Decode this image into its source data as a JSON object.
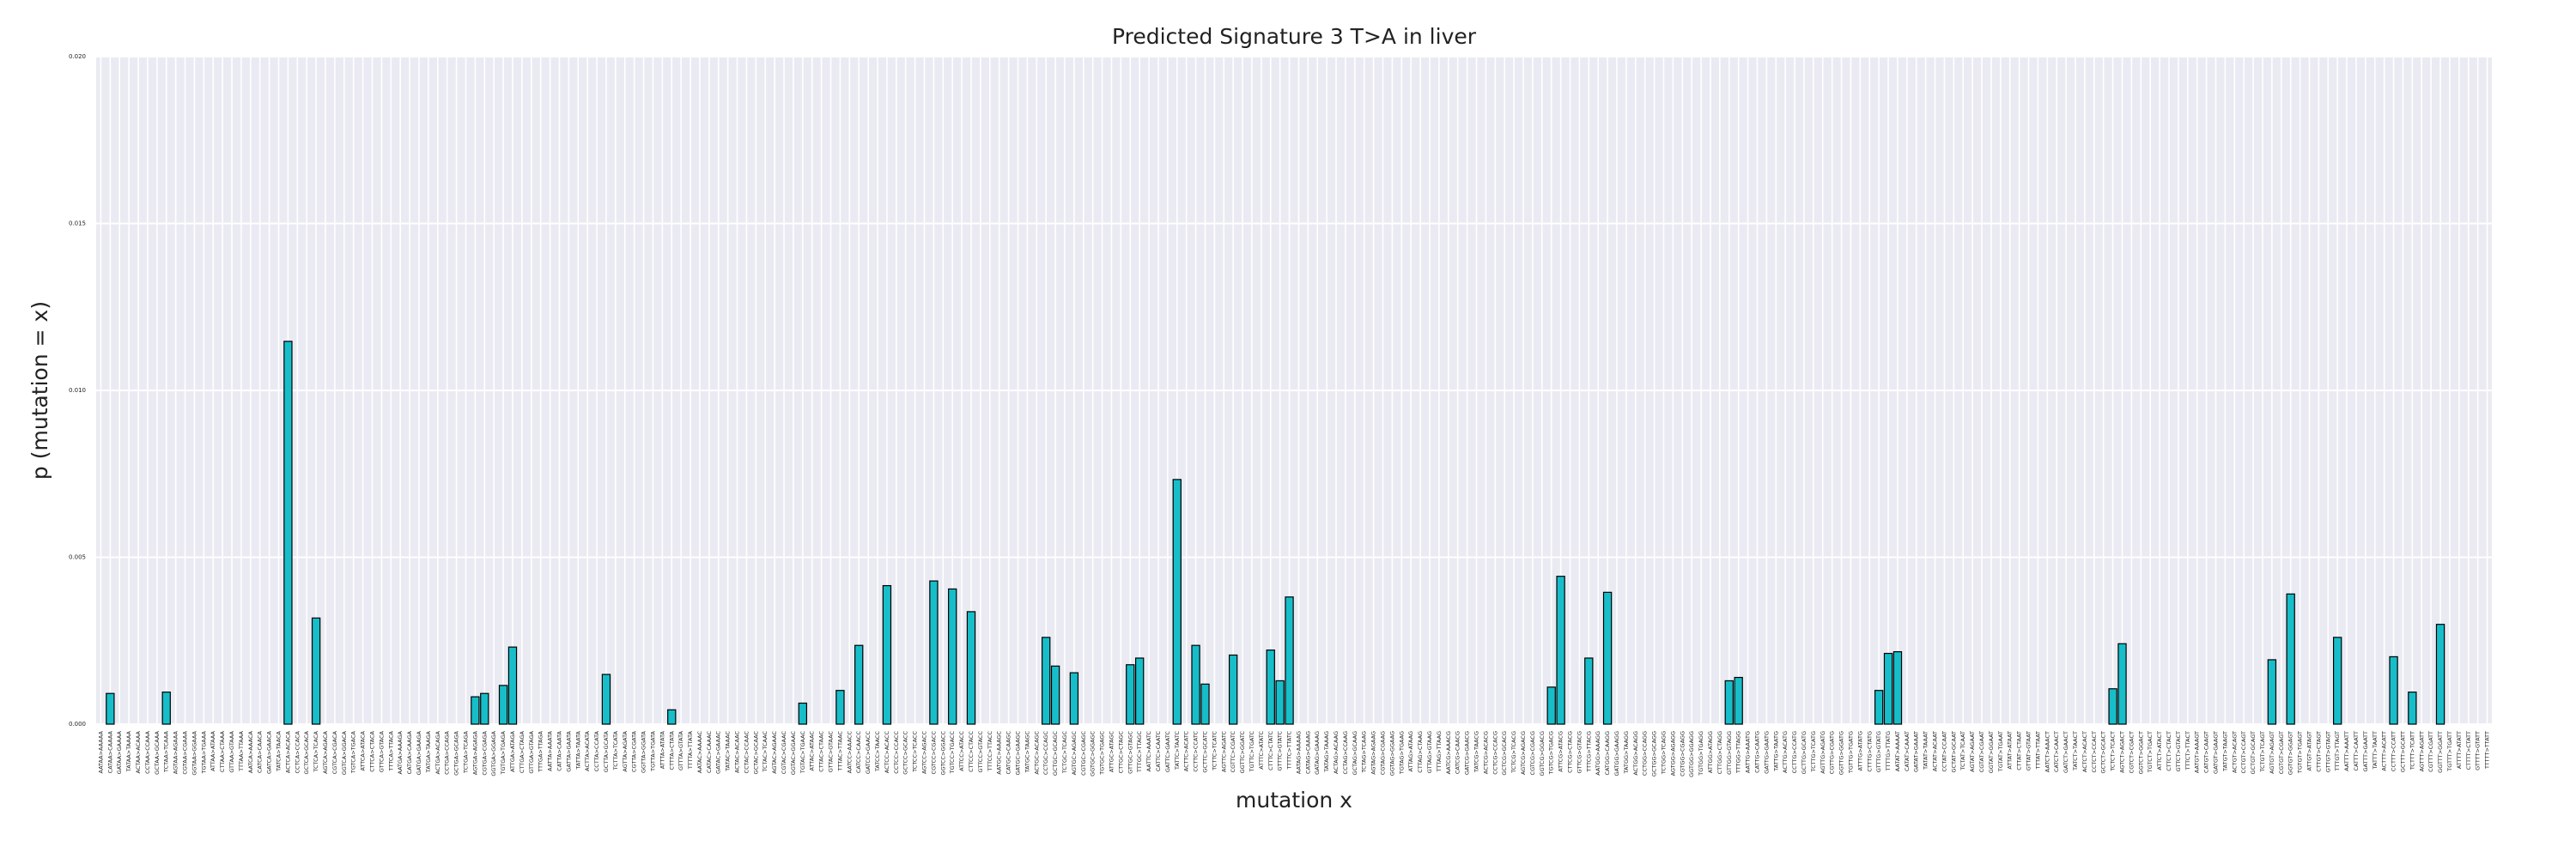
{
  "chart_data": {
    "type": "bar",
    "title": "Predicted Signature 3 T>A in liver",
    "xlabel": "mutation x",
    "ylabel": "p (mutation = x)",
    "color": "#17bec9",
    "edgecolor": "#000000",
    "grid": true,
    "ylim": [
      0,
      0.02
    ],
    "yticks": [
      {
        "value": 0,
        "label": "0.000"
      },
      {
        "value": 0.005,
        "label": "0.005"
      },
      {
        "value": 0.01,
        "label": "0.010"
      },
      {
        "value": 0.015,
        "label": "0.015"
      },
      {
        "value": 0.02,
        "label": "0.020"
      }
    ],
    "categories": [
      "AATAA>AAAAA",
      "CATAA>CAAAA",
      "GATAA>GAAAA",
      "TATAA>TAAAA",
      "ACTAA>ACAAA",
      "CCTAA>CCAAA",
      "GCTAA>GCAAA",
      "TCTAA>TCAAA",
      "AGTAA>AGAAA",
      "CGTAA>CGAAA",
      "GGTAA>GGAAA",
      "TGTAA>TGAAA",
      "ATTAA>ATAAA",
      "CTTAA>CTAAA",
      "GTTAA>GTAAA",
      "TTTAA>TTAAA",
      "AATCA>AAACA",
      "CATCA>CAACA",
      "GATCA>GAACA",
      "TATCA>TAACA",
      "ACTCA>ACACA",
      "CCTCA>CCACA",
      "GCTCA>GCACA",
      "TCTCA>TCACA",
      "AGTCA>AGACA",
      "CGTCA>CGACA",
      "GGTCA>GGACA",
      "TGTCA>TGACA",
      "ATTCA>ATACA",
      "CTTCA>CTACA",
      "GTTCA>GTACA",
      "TTTCA>TTACA",
      "AATGA>AAAGA",
      "CATGA>CAAGA",
      "GATGA>GAAGA",
      "TATGA>TAAGA",
      "ACTGA>ACAGA",
      "CCTGA>CCAGA",
      "GCTGA>GCAGA",
      "TCTGA>TCAGA",
      "AGTGA>AGAGA",
      "CGTGA>CGAGA",
      "GGTGA>GGAGA",
      "TGTGA>TGAGA",
      "ATTGA>ATAGA",
      "CTTGA>CTAGA",
      "GTTGA>GTAGA",
      "TTTGA>TTAGA",
      "AATTA>AAATA",
      "CATTA>CAATA",
      "GATTA>GAATA",
      "TATTA>TAATA",
      "ACTTA>ACATA",
      "CCTTA>CCATA",
      "GCTTA>GCATA",
      "TCTTA>TCATA",
      "AGTTA>AGATA",
      "CGTTA>CGATA",
      "GGTTA>GGATA",
      "TGTTA>TGATA",
      "ATTTA>ATATA",
      "CTTTA>CTATA",
      "GTTTA>GTATA",
      "TTTTA>TTATA",
      "AATAC>AAAAC",
      "CATAC>CAAAC",
      "GATAC>GAAAC",
      "TATAC>TAAAC",
      "ACTAC>ACAAC",
      "CCTAC>CCAAC",
      "GCTAC>GCAAC",
      "TCTAC>TCAAC",
      "AGTAC>AGAAC",
      "CGTAC>CGAAC",
      "GGTAC>GGAAC",
      "TGTAC>TGAAC",
      "ATTAC>ATAAC",
      "CTTAC>CTAAC",
      "GTTAC>GTAAC",
      "TTTAC>TTAAC",
      "AATCC>AAACC",
      "CATCC>CAACC",
      "GATCC>GAACC",
      "TATCC>TAACC",
      "ACTCC>ACACC",
      "CCTCC>CCACC",
      "GCTCC>GCACC",
      "TCTCC>TCACC",
      "AGTCC>AGACC",
      "CGTCC>CGACC",
      "GGTCC>GGACC",
      "TGTCC>TGACC",
      "ATTCC>ATACC",
      "CTTCC>CTACC",
      "GTTCC>GTACC",
      "TTTCC>TTACC",
      "AATGC>AAAGC",
      "CATGC>CAAGC",
      "GATGC>GAAGC",
      "TATGC>TAAGC",
      "ACTGC>ACAGC",
      "CCTGC>CCAGC",
      "GCTGC>GCAGC",
      "TCTGC>TCAGC",
      "AGTGC>AGAGC",
      "CGTGC>CGAGC",
      "GGTGC>GGAGC",
      "TGTGC>TGAGC",
      "ATTGC>ATAGC",
      "CTTGC>CTAGC",
      "GTTGC>GTAGC",
      "TTTGC>TTAGC",
      "AATTC>AAATC",
      "CATTC>CAATC",
      "GATTC>GAATC",
      "TATTC>TAATC",
      "ACTTC>ACATC",
      "CCTTC>CCATC",
      "GCTTC>GCATC",
      "TCTTC>TCATC",
      "AGTTC>AGATC",
      "CGTTC>CGATC",
      "GGTTC>GGATC",
      "TGTTC>TGATC",
      "ATTTC>ATATC",
      "CTTTC>CTATC",
      "GTTTC>GTATC",
      "TTTTC>TTATC",
      "AATAG>AAAAG",
      "CATAG>CAAAG",
      "GATAG>GAAAG",
      "TATAG>TAAAG",
      "ACTAG>ACAAG",
      "CCTAG>CCAAG",
      "GCTAG>GCAAG",
      "TCTAG>TCAAG",
      "AGTAG>AGAAG",
      "CGTAG>CGAAG",
      "GGTAG>GGAAG",
      "TGTAG>TGAAG",
      "ATTAG>ATAAG",
      "CTTAG>CTAAG",
      "GTTAG>GTAAG",
      "TTTAG>TTAAG",
      "AATCG>AAACG",
      "CATCG>CAACG",
      "GATCG>GAACG",
      "TATCG>TAACG",
      "ACTCG>ACACG",
      "CCTCG>CCACG",
      "GCTCG>GCACG",
      "TCTCG>TCACG",
      "AGTCG>AGACG",
      "CGTCG>CGACG",
      "GGTCG>GGACG",
      "TGTCG>TGACG",
      "ATTCG>ATACG",
      "CTTCG>CTACG",
      "GTTCG>GTACG",
      "TTTCG>TTACG",
      "AATGG>AAAGG",
      "CATGG>CAAGG",
      "GATGG>GAAGG",
      "TATGG>TAAGG",
      "ACTGG>ACAGG",
      "CCTGG>CCAGG",
      "GCTGG>GCAGG",
      "TCTGG>TCAGG",
      "AGTGG>AGAGG",
      "CGTGG>CGAGG",
      "GGTGG>GGAGG",
      "TGTGG>TGAGG",
      "ATTGG>ATAGG",
      "CTTGG>CTAGG",
      "GTTGG>GTAGG",
      "TTTGG>TTAGG",
      "AATTG>AAATG",
      "CATTG>CAATG",
      "GATTG>GAATG",
      "TATTG>TAATG",
      "ACTTG>ACATG",
      "CCTTG>CCATG",
      "GCTTG>GCATG",
      "TCTTG>TCATG",
      "AGTTG>AGATG",
      "CGTTG>CGATG",
      "GGTTG>GGATG",
      "TGTTG>TGATG",
      "ATTTG>ATATG",
      "CTTTG>CTATG",
      "GTTTG>GTATG",
      "TTTTG>TTATG",
      "AATAT>AAAAT",
      "CATAT>CAAAT",
      "GATAT>GAAAT",
      "TATAT>TAAAT",
      "ACTAT>ACAAT",
      "CCTAT>CCAAT",
      "GCTAT>GCAAT",
      "TCTAT>TCAAT",
      "AGTAT>AGAAT",
      "CGTAT>CGAAT",
      "GGTAT>GGAAT",
      "TGTAT>TGAAT",
      "ATTAT>ATAAT",
      "CTTAT>CTAAT",
      "GTTAT>GTAAT",
      "TTTAT>TTAAT",
      "AATCT>AAACT",
      "CATCT>CAACT",
      "GATCT>GAACT",
      "TATCT>TAACT",
      "ACTCT>ACACT",
      "CCTCT>CCACT",
      "GCTCT>GCACT",
      "TCTCT>TCACT",
      "AGTCT>AGACT",
      "CGTCT>CGACT",
      "GGTCT>GGACT",
      "TGTCT>TGACT",
      "ATTCT>ATACT",
      "CTTCT>CTACT",
      "GTTCT>GTACT",
      "TTTCT>TTACT",
      "AATGT>AAAGT",
      "CATGT>CAAGT",
      "GATGT>GAAGT",
      "TATGT>TAAGT",
      "ACTGT>ACAGT",
      "CCTGT>CCAGT",
      "GCTGT>GCAGT",
      "TCTGT>TCAGT",
      "AGTGT>AGAGT",
      "CGTGT>CGAGT",
      "GGTGT>GGAGT",
      "TGTGT>TGAGT",
      "ATTGT>ATAGT",
      "CTTGT>CTAGT",
      "GTTGT>GTAGT",
      "TTTGT>TTAGT",
      "AATTT>AAATT",
      "CATTT>CAATT",
      "GATTT>GAATT",
      "TATTT>TAATT",
      "ACTTT>ACATT",
      "CCTTT>CCATT",
      "GCTTT>GCATT",
      "TCTTT>TCATT",
      "AGTTT>AGATT",
      "CGTTT>CGATT",
      "GGTTT>GGATT",
      "TGTTT>TGATT",
      "ATTTT>ATATT",
      "CTTTT>CTATT",
      "GTTTT>GTATT",
      "TTTTT>TTATT"
    ],
    "values": [
      0,
      0.00092,
      0,
      0,
      0,
      0,
      0,
      0.00096,
      0,
      0,
      0,
      0,
      0,
      0,
      0,
      0,
      0,
      0,
      0,
      0,
      0.01147,
      0,
      0,
      0.00318,
      0,
      0,
      0,
      0,
      0,
      0,
      0,
      0,
      0,
      0,
      0,
      0,
      0,
      0,
      0,
      0,
      0.00082,
      0.00092,
      0,
      0.00116,
      0.00231,
      0,
      0,
      0,
      0,
      0,
      0,
      0,
      0,
      0,
      0.00149,
      0,
      0,
      0,
      0,
      0,
      0,
      0.00043,
      0,
      0,
      0,
      0,
      0,
      0,
      0,
      0,
      0,
      0,
      0,
      0,
      0,
      0.00063,
      0,
      0,
      0,
      0.00101,
      0,
      0.00236,
      0,
      0,
      0.00415,
      0,
      0,
      0,
      0,
      0.00429,
      0,
      0.00405,
      0,
      0.00337,
      0,
      0,
      0,
      0,
      0,
      0,
      0,
      0.0026,
      0.00174,
      0,
      0.00154,
      0,
      0,
      0,
      0,
      0,
      0.00178,
      0.00198,
      0,
      0,
      0,
      0.00733,
      0,
      0.00236,
      0.0012,
      0,
      0,
      0.00207,
      0,
      0,
      0,
      0.00222,
      0.0013,
      0.00381,
      0,
      0,
      0,
      0,
      0,
      0,
      0,
      0,
      0,
      0,
      0,
      0,
      0,
      0,
      0,
      0,
      0,
      0,
      0,
      0,
      0,
      0,
      0,
      0,
      0,
      0,
      0,
      0.00111,
      0.00443,
      0,
      0,
      0.00198,
      0,
      0.00395,
      0,
      0,
      0,
      0,
      0,
      0,
      0,
      0,
      0,
      0,
      0,
      0,
      0.0013,
      0.0014,
      0,
      0,
      0,
      0,
      0,
      0,
      0,
      0,
      0,
      0,
      0,
      0,
      0,
      0,
      0.00101,
      0.00212,
      0.00217,
      0,
      0,
      0,
      0,
      0,
      0,
      0,
      0,
      0,
      0,
      0,
      0,
      0,
      0,
      0,
      0,
      0,
      0,
      0,
      0,
      0,
      0,
      0.00106,
      0.00241,
      0,
      0,
      0,
      0,
      0,
      0,
      0,
      0,
      0,
      0,
      0,
      0,
      0,
      0,
      0,
      0.00193,
      0,
      0.0039,
      0,
      0,
      0,
      0,
      0.0026,
      0,
      0,
      0,
      0,
      0,
      0.00202,
      0,
      0.00096,
      0,
      0,
      0.00299,
      0,
      0,
      0,
      0,
      0
    ]
  }
}
